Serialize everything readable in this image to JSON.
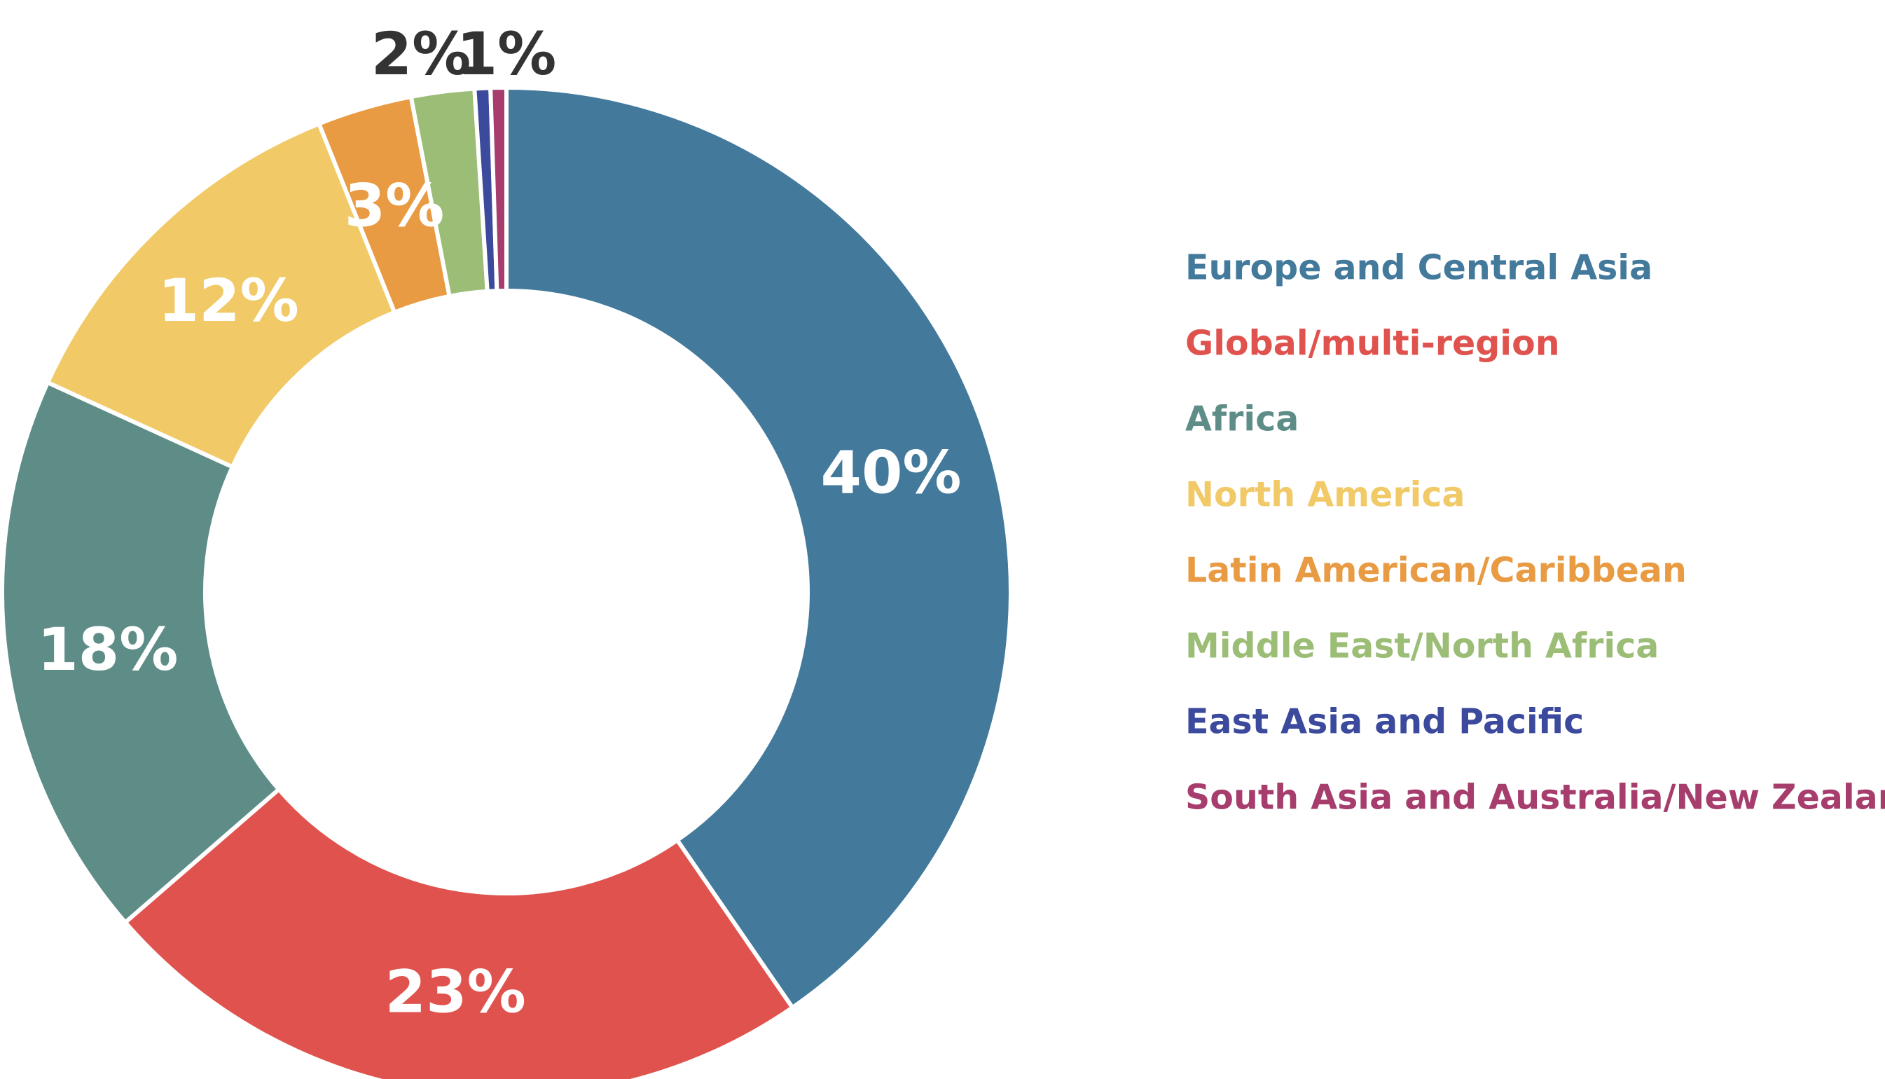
{
  "chart_data": {
    "type": "pie",
    "donut": true,
    "title": "",
    "legend_position": "right",
    "slice_border_color": "#ffffff",
    "slices": [
      {
        "label": "Europe and Central Asia",
        "value": 40,
        "value_label": "40%",
        "color": "#437a9c",
        "label_color": "#ffffff"
      },
      {
        "label": "Global/multi-region",
        "value": 23,
        "value_label": "23%",
        "color": "#e0524d",
        "label_color": "#ffffff"
      },
      {
        "label": "Africa",
        "value": 18,
        "value_label": "18%",
        "color": "#5e8d87",
        "label_color": "#ffffff"
      },
      {
        "label": "North America",
        "value": 12,
        "value_label": "12%",
        "color": "#f1c966",
        "label_color": "#ffffff"
      },
      {
        "label": "Latin American/Caribbean",
        "value": 3,
        "value_label": "3%",
        "color": "#e89b42",
        "label_color": "#ffffff"
      },
      {
        "label": "Middle East/North Africa",
        "value": 2,
        "value_label": "2%",
        "color": "#9bbd75",
        "label_color": "#333333"
      },
      {
        "label": "East Asia and Pacific",
        "value": 0.5,
        "value_label": "",
        "color": "#3b4a9c",
        "label_color": "#333333"
      },
      {
        "label": "South Asia and Australia/New Zealand",
        "value": 0.5,
        "value_label": "1%",
        "color": "#a63d6d",
        "label_color": "#333333"
      }
    ]
  }
}
